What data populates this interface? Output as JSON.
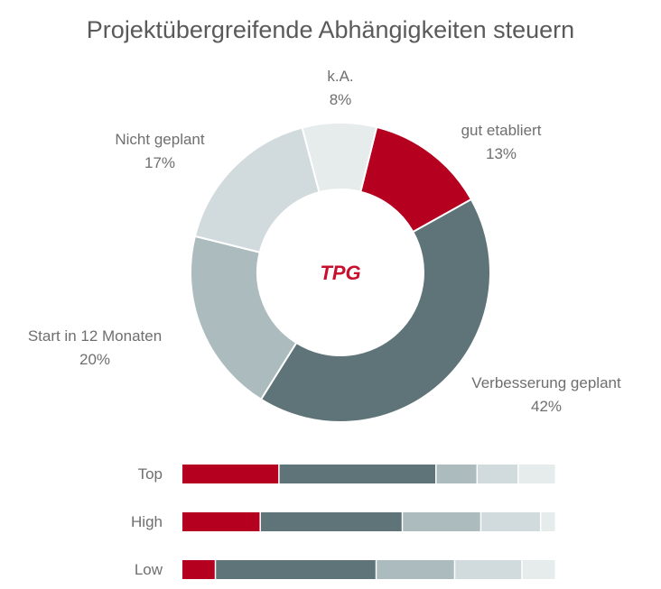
{
  "chart_data": [
    {
      "type": "pie",
      "variant": "donut",
      "title": "Projektübergreifende Abhängigkeiten steuern",
      "center_logo": "TPG",
      "categories": [
        "gut etabliert",
        "Verbesserung geplant",
        "Start in 12 Monaten",
        "Nicht geplant",
        "k.A."
      ],
      "values": [
        13,
        42,
        20,
        17,
        8
      ],
      "data_labels": [
        "13%",
        "42%",
        "20%",
        "17%",
        "8%"
      ],
      "colors": [
        "#b5001f",
        "#5e7479",
        "#abbbbe",
        "#d1dadc",
        "#e6ebec"
      ]
    },
    {
      "type": "bar",
      "orientation": "horizontal",
      "stacked": true,
      "percent": true,
      "categories": [
        "Top",
        "High",
        "Low"
      ],
      "series": [
        {
          "values": [
            26,
            21,
            9
          ],
          "color": "#b5001f"
        },
        {
          "values": [
            42,
            38,
            43
          ],
          "color": "#5e7479"
        },
        {
          "values": [
            11,
            21,
            21
          ],
          "color": "#abbbbe"
        },
        {
          "values": [
            11,
            16,
            18
          ],
          "color": "#d1dadc"
        },
        {
          "values": [
            10,
            4,
            9
          ],
          "color": "#e6ebec"
        }
      ]
    }
  ]
}
